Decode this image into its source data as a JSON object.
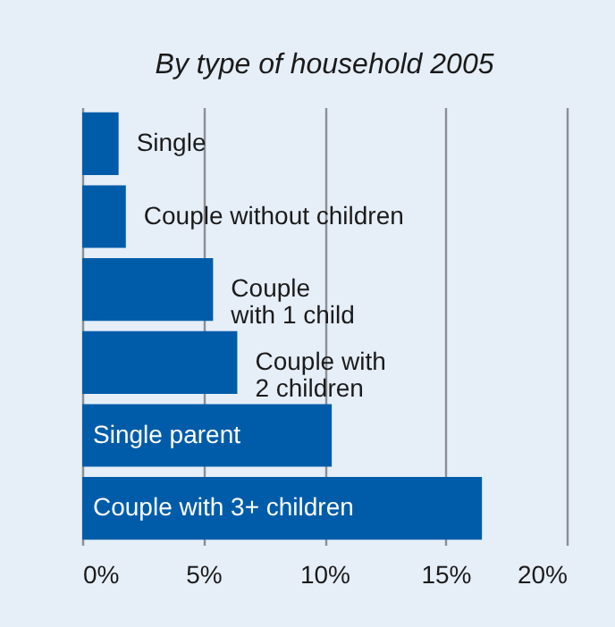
{
  "chart_data": {
    "type": "bar",
    "orientation": "horizontal",
    "title": "By type of household 2005",
    "categories": [
      "Single",
      "Couple without children",
      "Couple\nwith 1 child",
      "Couple with\n2 children",
      "Single parent",
      "Couple with 3+ children"
    ],
    "values": [
      1.5,
      1.8,
      5.4,
      6.4,
      10.3,
      16.5
    ],
    "color": "#005ca9",
    "xlim": [
      0,
      20
    ],
    "xticks": [
      {
        "value": 0,
        "label": "0%"
      },
      {
        "value": 5,
        "label": "5%"
      },
      {
        "value": 10,
        "label": "10%"
      },
      {
        "value": 15,
        "label": "15%"
      },
      {
        "value": 20,
        "label": "20%"
      }
    ],
    "grid": "x",
    "tick_labels": "x"
  }
}
